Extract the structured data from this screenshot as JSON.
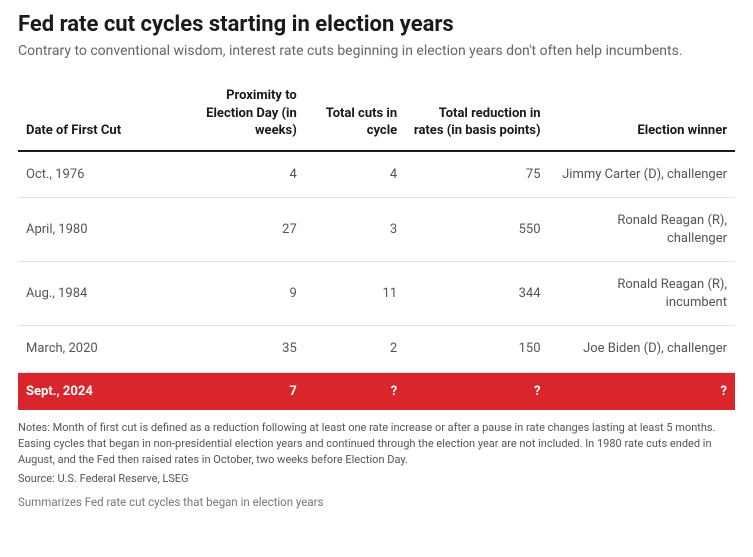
{
  "title": "Fed rate cut cycles starting in election years",
  "subtitle": "Contrary to conventional wisdom, interest rate cuts beginning in election years don't often help incumbents.",
  "columns": [
    "Date of First Cut",
    "Proximity to Election Day (in weeks)",
    "Total cuts in cycle",
    "Total reduction in rates (in basis points)",
    "Election winner"
  ],
  "rows": [
    {
      "date": "Oct., 1976",
      "proximity": "4",
      "cuts": "4",
      "reduction": "75",
      "winner": "Jimmy Carter (D), challenger",
      "highlight": false
    },
    {
      "date": "April, 1980",
      "proximity": "27",
      "cuts": "3",
      "reduction": "550",
      "winner": "Ronald Reagan (R), challenger",
      "highlight": false
    },
    {
      "date": "Aug., 1984",
      "proximity": "9",
      "cuts": "11",
      "reduction": "344",
      "winner": "Ronald Reagan (R), incumbent",
      "highlight": false
    },
    {
      "date": "March, 2020",
      "proximity": "35",
      "cuts": "2",
      "reduction": "150",
      "winner": "Joe Biden (D), challenger",
      "highlight": false
    },
    {
      "date": "Sept., 2024",
      "proximity": "7",
      "cuts": "?",
      "reduction": "?",
      "winner": "?",
      "highlight": true
    }
  ],
  "notes": "Notes: Month of first cut is defined as a reduction following at least one rate increase or after a pause in rate changes lasting at least 5 months. Easing cycles that began in non-presidential election years and continued through the election year are not included. In 1980 rate cuts ended in August, and the Fed then raised rates in October, two weeks before Election Day.",
  "source": "Source: U.S. Federal Reserve, LSEG",
  "summary": "Summarizes Fed rate cut cycles that began in election years",
  "style": {
    "highlight_bg": "#d9262d",
    "highlight_fg": "#ffffff",
    "header_border": "#1a1a1a",
    "row_border": "#e2e2e2",
    "body_text": "#555555",
    "title_color": "#1a1a1a",
    "subtitle_color": "#666666",
    "background": "#ffffff",
    "title_fontsize": 22,
    "subtitle_fontsize": 14,
    "body_fontsize": 13,
    "notes_fontsize": 11
  }
}
